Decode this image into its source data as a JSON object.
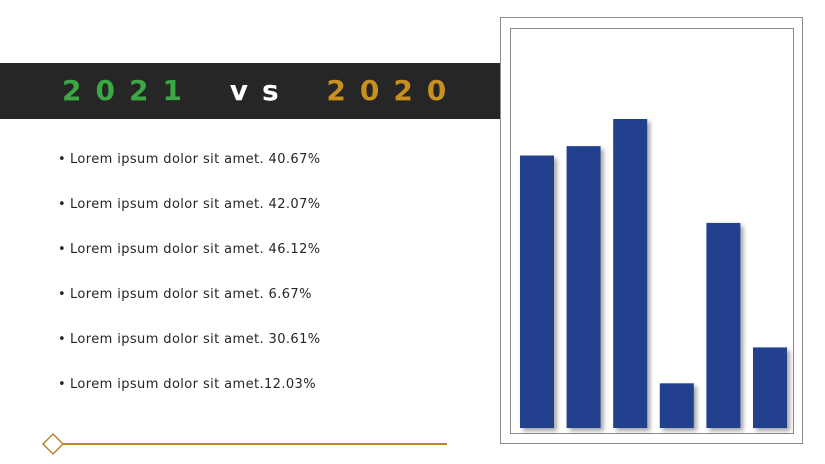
{
  "title": {
    "year_a": "2021",
    "vs": "vs",
    "year_b": "2020",
    "colors": {
      "year_a": "#3aa843",
      "vs": "#ffffff",
      "year_b": "#c8911f",
      "bar": "#262626"
    }
  },
  "bullets": [
    "Lorem ipsum dolor sit amet. 40.67%",
    "Lorem ipsum dolor sit amet. 42.07%",
    "Lorem ipsum dolor sit amet. 46.12%",
    "Lorem ipsum dolor sit amet. 6.67%",
    "Lorem ipsum dolor sit amet. 30.61%",
    "Lorem ipsum dolor sit amet.12.03%"
  ],
  "chart_data": {
    "type": "bar",
    "categories": [
      "",
      "",
      "",
      "",
      "",
      ""
    ],
    "values": [
      40.67,
      42.07,
      46.12,
      6.67,
      30.61,
      12.03
    ],
    "title": "",
    "xlabel": "",
    "ylabel": "",
    "ylim": [
      0,
      50
    ],
    "grid": false,
    "legend": "none",
    "bar_color": "#23408e"
  },
  "accent": {
    "line": "#b8862a",
    "diamond": "#b8862a"
  }
}
